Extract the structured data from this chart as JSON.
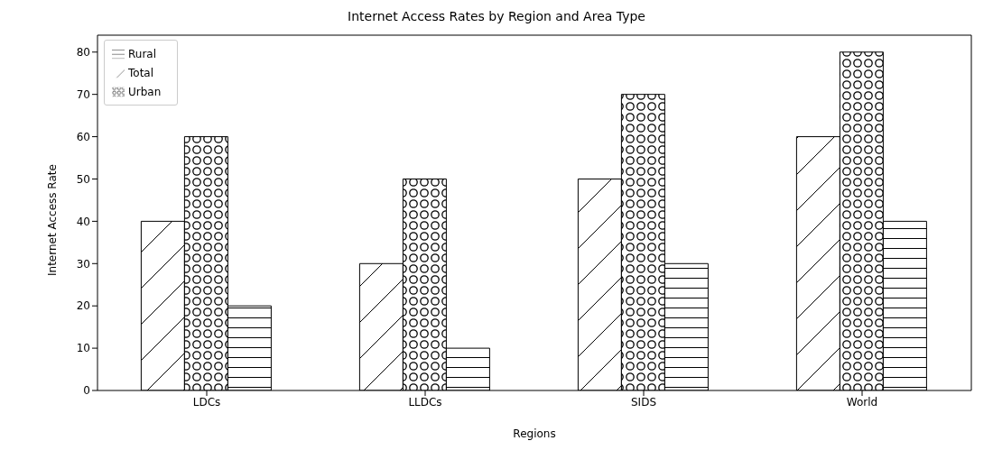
{
  "chart_data": {
    "type": "bar",
    "title": "Internet Access Rates by Region and Area Type",
    "xlabel": "Regions",
    "ylabel": "Internet Access Rate",
    "categories": [
      "LDCs",
      "LLDCs",
      "SIDS",
      "World"
    ],
    "series": [
      {
        "name": "Total",
        "color": "#000000",
        "values": [
          40,
          30,
          50,
          60
        ]
      },
      {
        "name": "Urban",
        "color": "#000000",
        "values": [
          60,
          50,
          70,
          80
        ]
      },
      {
        "name": "Rural",
        "color": "#000000",
        "values": [
          20,
          10,
          30,
          40
        ]
      }
    ],
    "ylim": [
      0,
      84
    ],
    "yticks": [
      0,
      10,
      20,
      30,
      40,
      50,
      60,
      70,
      80
    ],
    "grid": false,
    "legend": "top left"
  }
}
